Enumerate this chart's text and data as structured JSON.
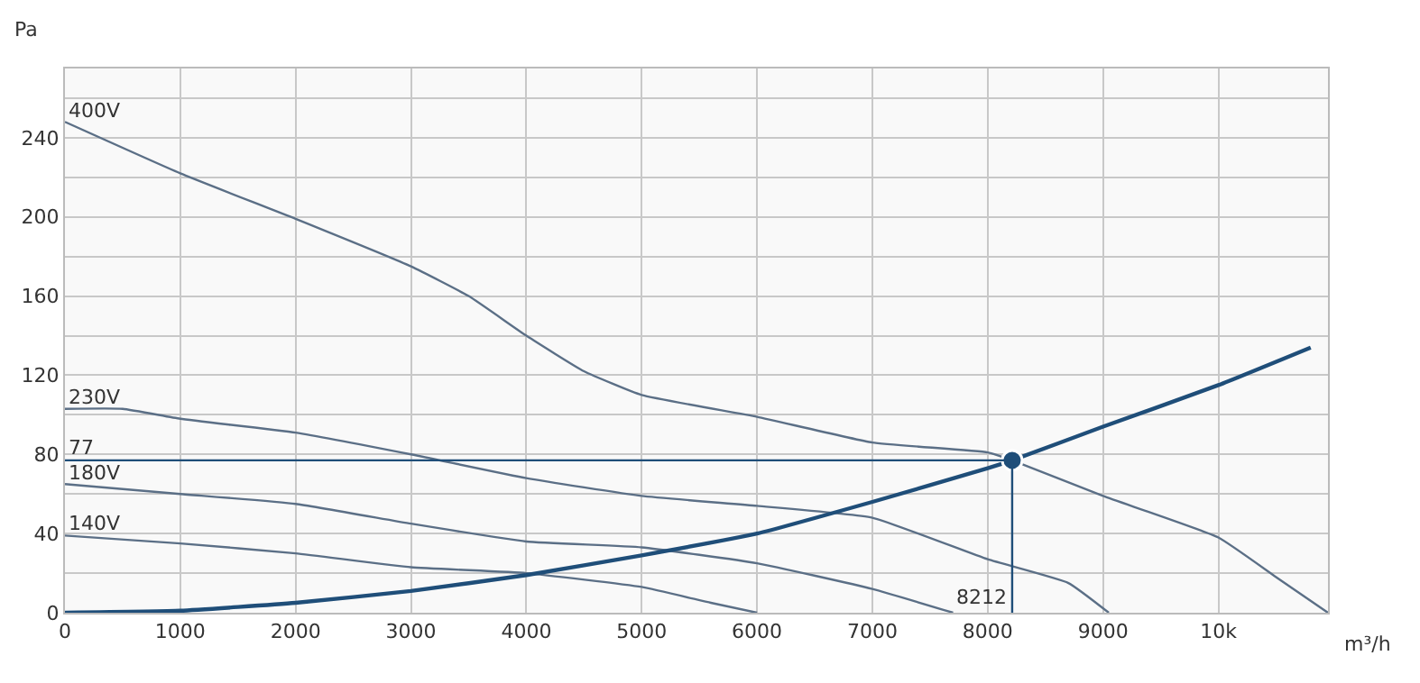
{
  "chart_data": {
    "type": "line",
    "xlabel": "m³/h",
    "ylabel": "Pa",
    "xlim": [
      0,
      10950
    ],
    "ylim": [
      0,
      275
    ],
    "xticks": [
      0,
      1000,
      2000,
      3000,
      4000,
      5000,
      6000,
      7000,
      8000,
      9000,
      {
        "value": 10000,
        "label": "10k"
      }
    ],
    "yticks": [
      0,
      {
        "value": 20,
        "label": null
      },
      40,
      {
        "value": 60,
        "label": null
      },
      80,
      {
        "value": 100,
        "label": null
      },
      120,
      {
        "value": 140,
        "label": null
      },
      160,
      {
        "value": 180,
        "label": null
      },
      200,
      {
        "value": 220,
        "label": null
      },
      240,
      {
        "value": 260,
        "label": null
      }
    ],
    "grid": true,
    "legend": false,
    "marker": "none",
    "line_style": "solid",
    "series": [
      {
        "name": "400V",
        "color": "#5b6f86",
        "x": [
          0,
          1000,
          2000,
          3000,
          3500,
          4000,
          4500,
          5000,
          6000,
          7000,
          8000,
          8212,
          9000,
          10000,
          10500,
          10950
        ],
        "values": [
          248,
          222,
          199,
          175,
          160,
          140,
          122,
          110,
          99,
          86,
          81,
          77,
          59,
          38,
          18,
          0
        ]
      },
      {
        "name": "230V",
        "color": "#5b6f86",
        "x": [
          0,
          500,
          1000,
          2000,
          3000,
          4000,
          5000,
          6000,
          7000,
          8000,
          8700,
          9050
        ],
        "values": [
          103,
          103,
          98,
          91,
          80,
          68,
          59,
          54,
          48,
          27,
          15,
          0
        ]
      },
      {
        "name": "180V",
        "color": "#5b6f86",
        "x": [
          0,
          1000,
          2000,
          3000,
          4000,
          5000,
          6000,
          7000,
          7700
        ],
        "values": [
          65,
          60,
          55,
          45,
          36,
          33,
          25,
          12,
          0
        ]
      },
      {
        "name": "140V",
        "color": "#5b6f86",
        "x": [
          0,
          1000,
          2000,
          3000,
          4000,
          5000,
          5600,
          6000
        ],
        "values": [
          39,
          35,
          30,
          23,
          20,
          13,
          5,
          0
        ]
      },
      {
        "color": "#1f4e79",
        "x": [
          0,
          1000,
          2000,
          3000,
          4000,
          5000,
          6000,
          7000,
          8000,
          8212,
          9000,
          10000,
          10800
        ],
        "values": [
          0,
          1,
          5,
          11,
          19,
          29,
          40,
          56,
          73,
          77,
          94,
          115,
          134
        ]
      },
      {
        "type": "scatter",
        "marker": "circle",
        "color": "#1f4e79",
        "x": [
          8212
        ],
        "values": [
          77
        ]
      }
    ],
    "ref_lines": [
      {
        "axis": "y",
        "value": 77,
        "label": "77",
        "color": "#1f4e79"
      },
      {
        "axis": "x",
        "value": 8212,
        "label": "8212",
        "color": "#1f4e79"
      }
    ]
  }
}
